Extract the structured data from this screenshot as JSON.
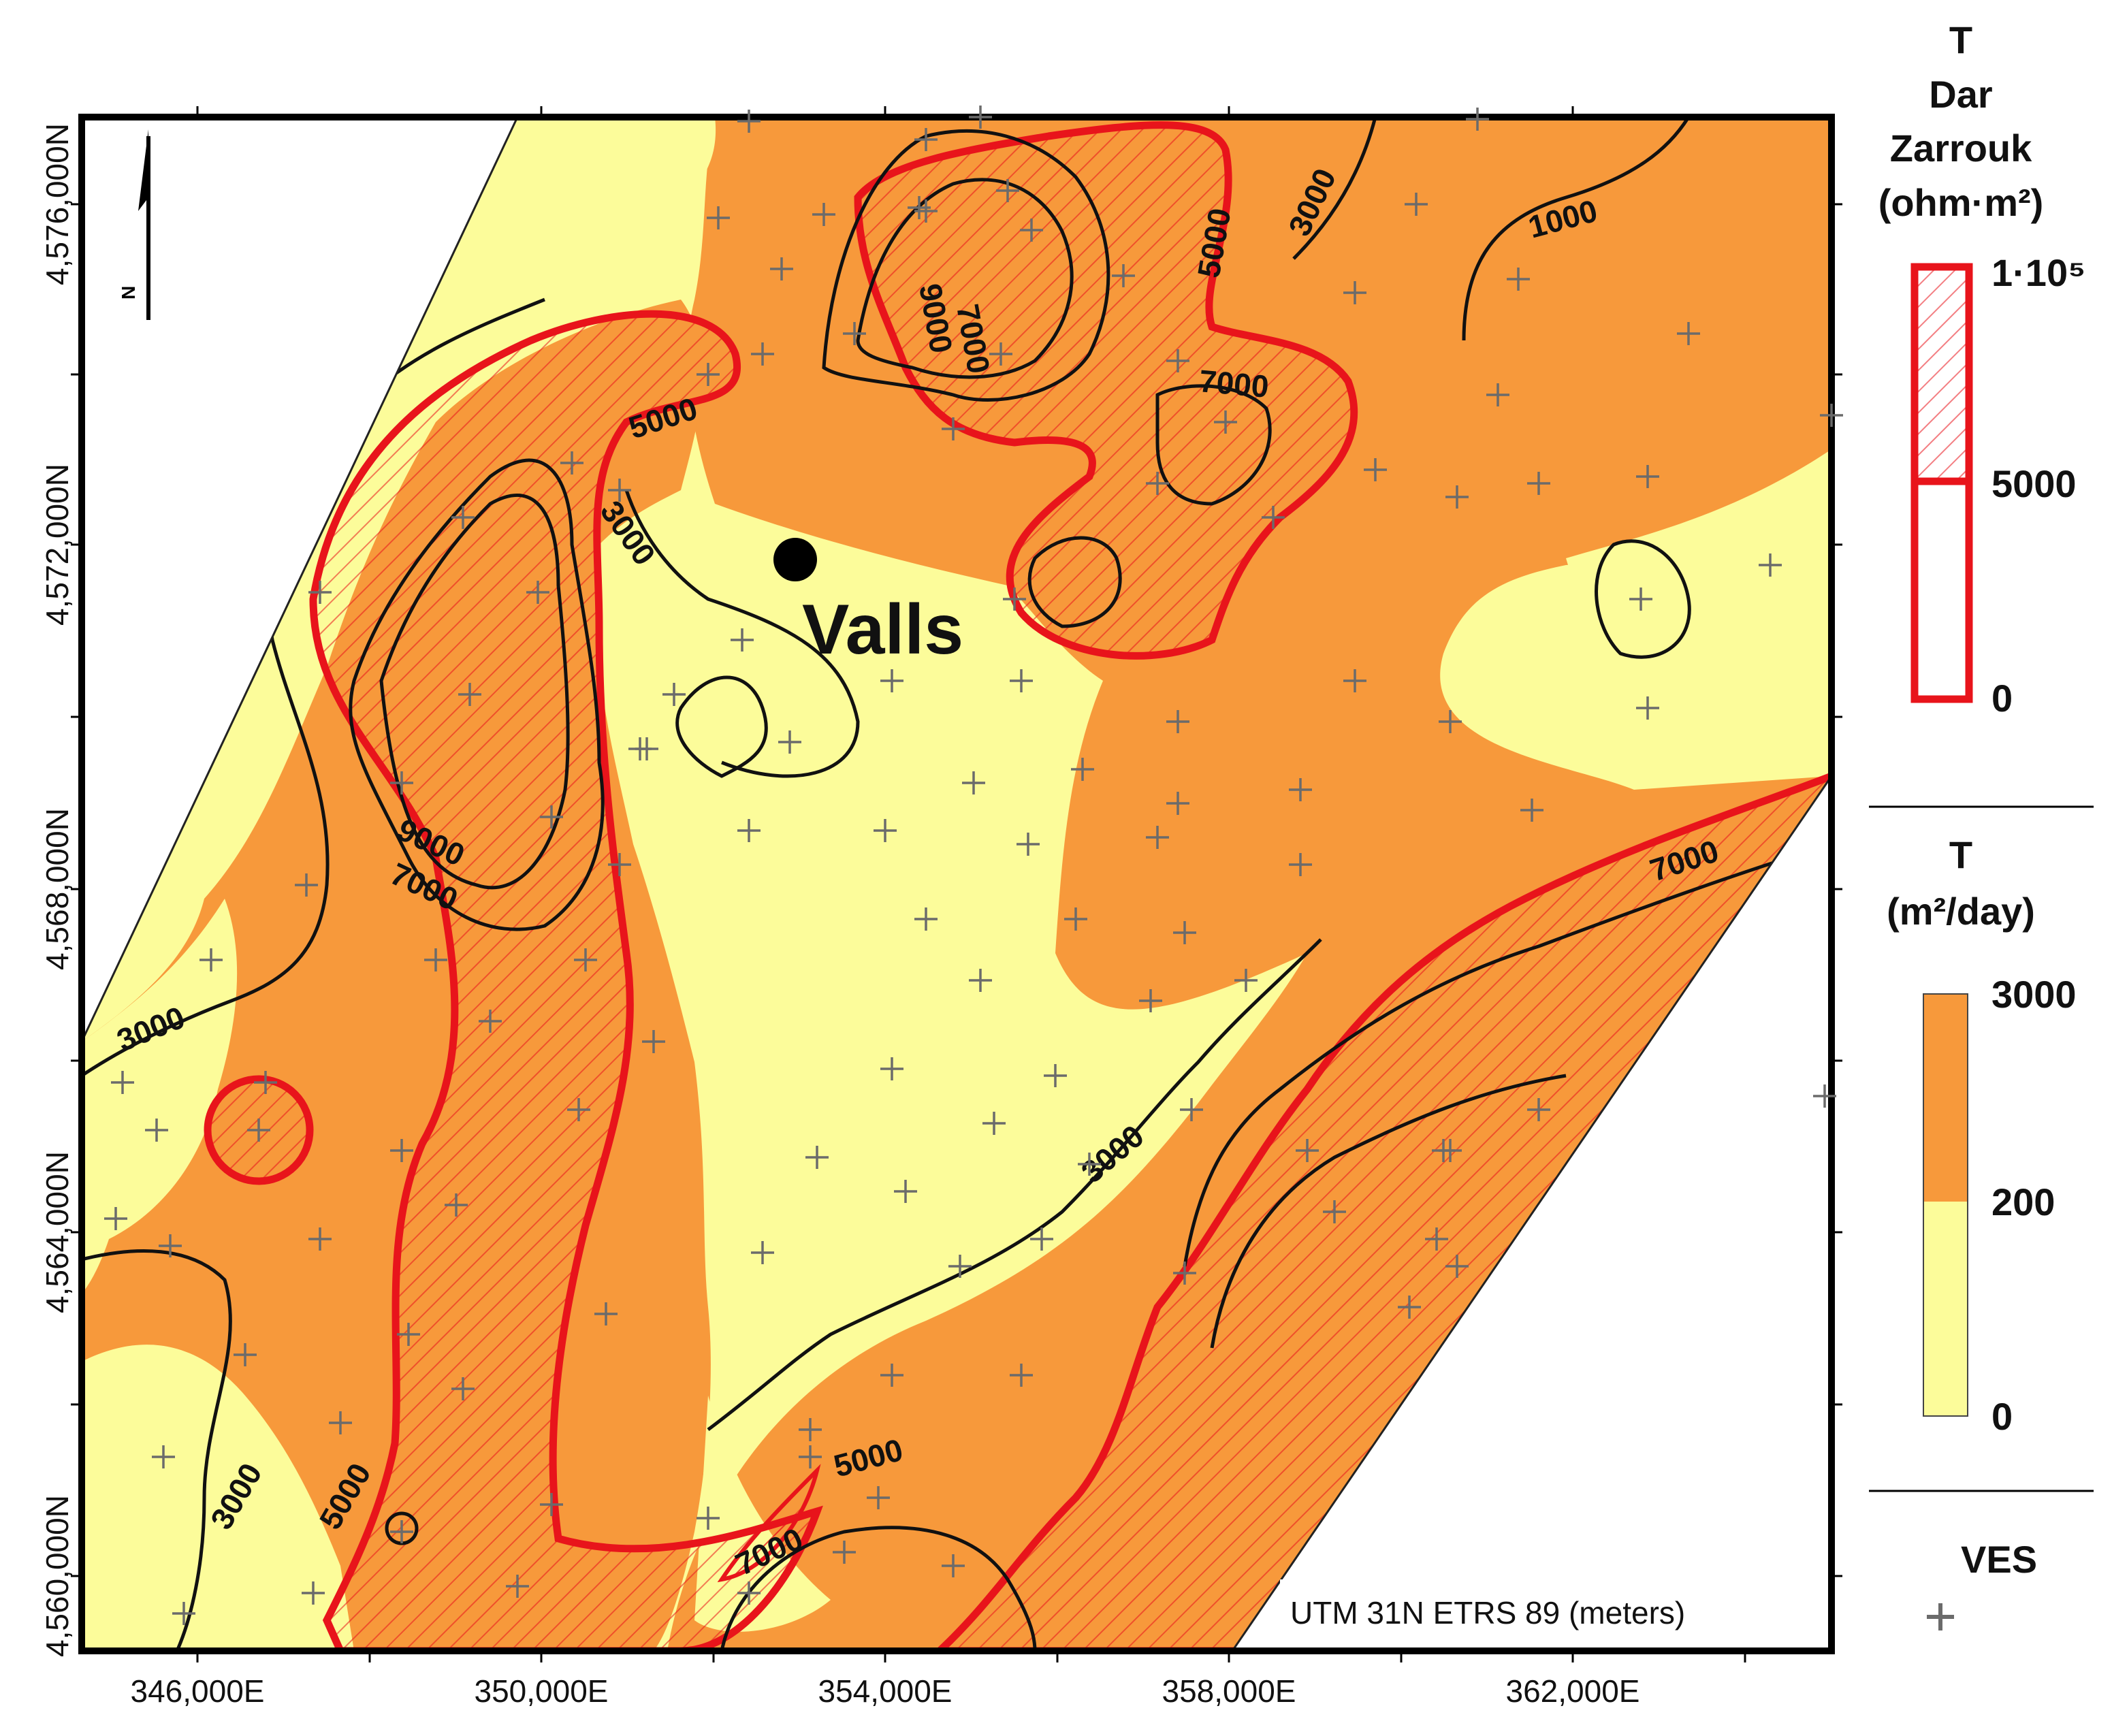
{
  "map": {
    "town_name": "Valls",
    "north_label": "N",
    "crs_label": "UTM 31N ETRS 89 (meters)",
    "y_ticks": [
      "4,576,000N",
      "4,572,000N",
      "4,568,000N",
      "4,564,000N",
      "4,560,000N"
    ],
    "x_ticks": [
      "346,000E",
      "350,000E",
      "354,000E",
      "358,000E",
      "362,000E"
    ],
    "contour_labels": {
      "c3000_west": "3000",
      "c3000_sw": "3000",
      "c3000_centre_w": "3000",
      "c3000_centre_s": "3000",
      "c3000_ne": "3000",
      "c1000_ne": "1000",
      "c5000_nw": "5000",
      "c5000_n": "5000",
      "c5000_s": "5000",
      "c5000_sw": "5000",
      "c7000_w": "7000",
      "c9000_w": "9000",
      "c9000_n": "9000",
      "c7000_n": "7000",
      "c7000_ne": "7000",
      "c7000_se": "7000",
      "c7000_s": "7000"
    },
    "colors": {
      "high_T": "#f7993b",
      "low_T": "#fcfc9a",
      "dar_zarrouk": "#e8141b",
      "contour": "#111111",
      "ves_marker": "#6b6b6b"
    }
  },
  "legend": {
    "dz_title": [
      "T",
      "Dar",
      "Zarrouk",
      "(ohm·m²)"
    ],
    "dz_values": [
      "1·10⁵",
      "5000",
      "0"
    ],
    "t_title": [
      "T",
      "(m²/day)"
    ],
    "t_values": [
      "3000",
      "200",
      "0"
    ],
    "ves_label": "VES"
  }
}
